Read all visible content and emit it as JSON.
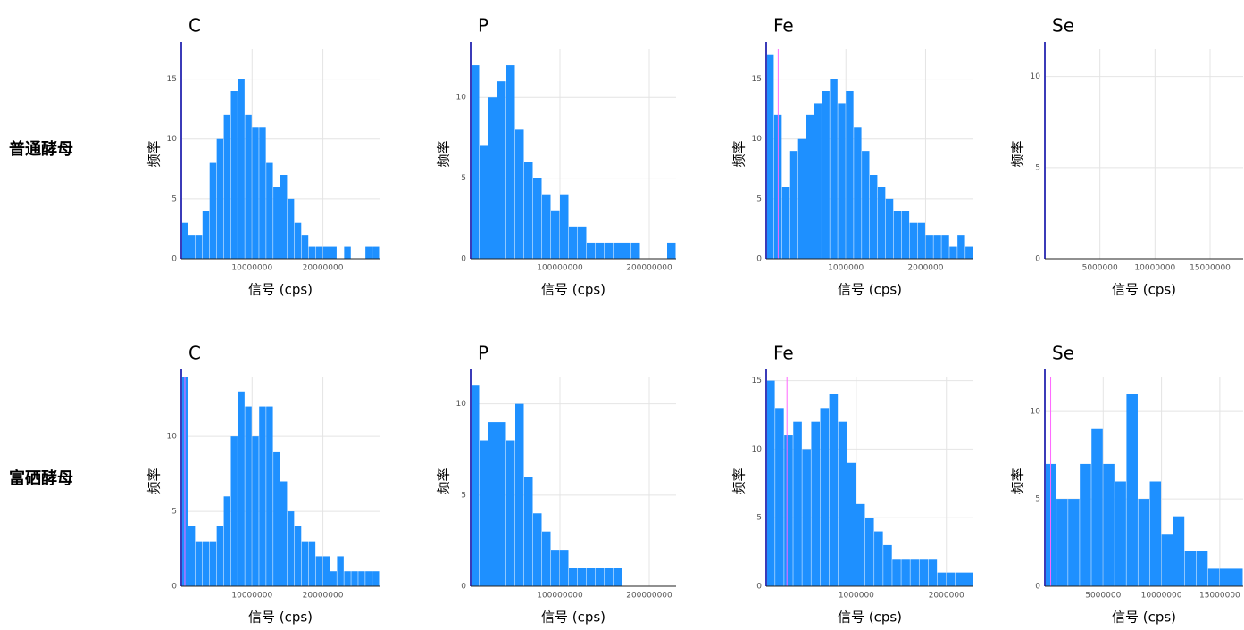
{
  "row_labels": [
    "普通酵母",
    "富硒酵母"
  ],
  "chart_data": [
    {
      "type": "histogram",
      "title": "C",
      "x_label": "信号 (cps)",
      "y_label": "频率",
      "color": "#1e90ff",
      "grid": true,
      "bins": [
        0,
        1000000,
        2000000,
        3000000,
        4000000,
        5000000,
        6000000,
        7000000,
        8000000,
        9000000,
        10000000,
        11000000,
        12000000,
        13000000,
        14000000,
        15000000,
        16000000,
        17000000,
        18000000,
        19000000,
        20000000,
        21000000,
        22000000,
        23000000,
        24000000,
        25000000,
        26000000,
        27000000,
        28000000
      ],
      "counts": [
        3,
        2,
        2,
        4,
        8,
        10,
        12,
        14,
        15,
        12,
        11,
        11,
        8,
        6,
        7,
        5,
        3,
        2,
        1,
        1,
        1,
        1,
        0,
        1,
        0,
        0,
        1,
        1
      ],
      "xlim": [
        0,
        28000000
      ],
      "xticks": [
        10000000,
        20000000
      ],
      "ylim": [
        0,
        17.5
      ],
      "yticks": [
        0,
        5,
        10,
        15
      ]
    },
    {
      "type": "histogram",
      "title": "P",
      "x_label": "信号 (cps)",
      "y_label": "频率",
      "color": "#1e90ff",
      "grid": true,
      "bins": [
        0,
        10000000,
        20000000,
        30000000,
        40000000,
        50000000,
        60000000,
        70000000,
        80000000,
        90000000,
        100000000,
        110000000,
        120000000,
        130000000,
        140000000,
        150000000,
        160000000,
        170000000,
        180000000,
        190000000,
        200000000,
        210000000,
        220000000,
        230000000
      ],
      "counts": [
        12,
        7,
        10,
        11,
        12,
        8,
        6,
        5,
        4,
        3,
        4,
        2,
        2,
        1,
        1,
        1,
        1,
        1,
        1,
        0,
        0,
        0,
        1
      ],
      "xlim": [
        0,
        230000000
      ],
      "xticks": [
        100000000,
        200000000
      ],
      "ylim": [
        0,
        13
      ],
      "yticks": [
        0,
        5,
        10
      ]
    },
    {
      "type": "histogram",
      "title": "Fe",
      "x_label": "信号 (cps)",
      "y_label": "频率",
      "color": "#1e90ff",
      "grid": true,
      "bins": [
        0,
        100000,
        200000,
        300000,
        400000,
        500000,
        600000,
        700000,
        800000,
        900000,
        1000000,
        1100000,
        1200000,
        1300000,
        1400000,
        1500000,
        1600000,
        1700000,
        1800000,
        1900000,
        2000000,
        2100000,
        2200000,
        2300000,
        2400000,
        2500000,
        2600000
      ],
      "counts": [
        17,
        12,
        6,
        9,
        10,
        12,
        13,
        14,
        15,
        13,
        14,
        11,
        9,
        7,
        6,
        5,
        4,
        4,
        3,
        3,
        2,
        2,
        2,
        1,
        2,
        1
      ],
      "threshold": 150000,
      "threshold_color": "#ff66ff",
      "xlim": [
        0,
        2600000
      ],
      "xticks": [
        1000000,
        2000000
      ],
      "ylim": [
        0,
        17.5
      ],
      "yticks": [
        0,
        5,
        10,
        15
      ]
    },
    {
      "type": "histogram",
      "title": "Se",
      "x_label": "信号 (cps)",
      "y_label": "频率",
      "color": "#1e90ff",
      "grid": true,
      "xlim": [
        0,
        18000000
      ],
      "xticks": [
        5000000,
        10000000,
        15000000
      ],
      "ylim": [
        0,
        11.5
      ],
      "yticks": [
        0,
        5,
        10
      ]
    },
    {
      "type": "histogram",
      "title": "C",
      "x_label": "信号 (cps)",
      "y_label": "频率",
      "color": "#1e90ff",
      "grid": true,
      "bins": [
        0,
        1000000,
        2000000,
        3000000,
        4000000,
        5000000,
        6000000,
        7000000,
        8000000,
        9000000,
        10000000,
        11000000,
        12000000,
        13000000,
        14000000,
        15000000,
        16000000,
        17000000,
        18000000,
        19000000,
        20000000,
        21000000,
        22000000,
        23000000,
        24000000,
        25000000,
        26000000,
        27000000,
        28000000
      ],
      "counts": [
        14,
        4,
        3,
        3,
        3,
        4,
        6,
        10,
        13,
        12,
        10,
        12,
        12,
        9,
        7,
        5,
        4,
        3,
        3,
        2,
        2,
        1,
        2,
        1,
        1,
        1,
        1,
        1
      ],
      "threshold": 500000,
      "threshold_color": "#ff66ff",
      "xlim": [
        0,
        28000000
      ],
      "xticks": [
        10000000,
        20000000
      ],
      "ylim": [
        0,
        14
      ],
      "yticks": [
        0,
        5,
        10
      ]
    },
    {
      "type": "histogram",
      "title": "P",
      "x_label": "信号 (cps)",
      "y_label": "频率",
      "color": "#1e90ff",
      "grid": true,
      "bins": [
        0,
        10000000,
        20000000,
        30000000,
        40000000,
        50000000,
        60000000,
        70000000,
        80000000,
        90000000,
        100000000,
        110000000,
        120000000,
        130000000,
        140000000,
        150000000,
        160000000,
        170000000,
        180000000,
        190000000,
        200000000,
        210000000,
        220000000,
        230000000
      ],
      "counts": [
        11,
        8,
        9,
        9,
        8,
        10,
        6,
        4,
        3,
        2,
        2,
        1,
        1,
        1,
        1,
        1,
        1,
        0,
        0,
        0,
        0,
        0,
        0
      ],
      "xlim": [
        0,
        230000000
      ],
      "xticks": [
        100000000,
        200000000
      ],
      "ylim": [
        0,
        11.5
      ],
      "yticks": [
        0,
        5,
        10
      ]
    },
    {
      "type": "histogram",
      "title": "Fe",
      "x_label": "信号 (cps)",
      "y_label": "频率",
      "color": "#1e90ff",
      "grid": true,
      "bins": [
        0,
        100000,
        200000,
        300000,
        400000,
        500000,
        600000,
        700000,
        800000,
        900000,
        1000000,
        1100000,
        1200000,
        1300000,
        1400000,
        1500000,
        1600000,
        1700000,
        1800000,
        1900000,
        2000000,
        2100000,
        2200000,
        2300000
      ],
      "counts": [
        15,
        13,
        11,
        12,
        10,
        12,
        13,
        14,
        12,
        9,
        6,
        5,
        4,
        3,
        2,
        2,
        2,
        2,
        2,
        1,
        1,
        1,
        1
      ],
      "threshold": 230000,
      "threshold_color": "#ff66ff",
      "xlim": [
        0,
        2300000
      ],
      "xticks": [
        1000000,
        2000000
      ],
      "ylim": [
        0,
        15.3
      ],
      "yticks": [
        0,
        5,
        10,
        15
      ]
    },
    {
      "type": "histogram",
      "title": "Se",
      "x_label": "信号 (cps)",
      "y_label": "频率",
      "color": "#1e90ff",
      "grid": true,
      "bins": [
        0,
        1000000,
        2000000,
        3000000,
        4000000,
        5000000,
        6000000,
        7000000,
        8000000,
        9000000,
        10000000,
        11000000,
        12000000,
        13000000,
        14000000,
        15000000,
        16000000,
        17000000
      ],
      "counts": [
        7,
        5,
        5,
        7,
        9,
        7,
        6,
        11,
        5,
        6,
        3,
        4,
        2,
        2,
        1,
        1,
        1
      ],
      "threshold": 500000,
      "threshold_color": "#ff66ff",
      "xlim": [
        0,
        17000000
      ],
      "xticks": [
        5000000,
        10000000,
        15000000
      ],
      "ylim": [
        0,
        12
      ],
      "yticks": [
        0,
        5,
        10
      ]
    }
  ]
}
